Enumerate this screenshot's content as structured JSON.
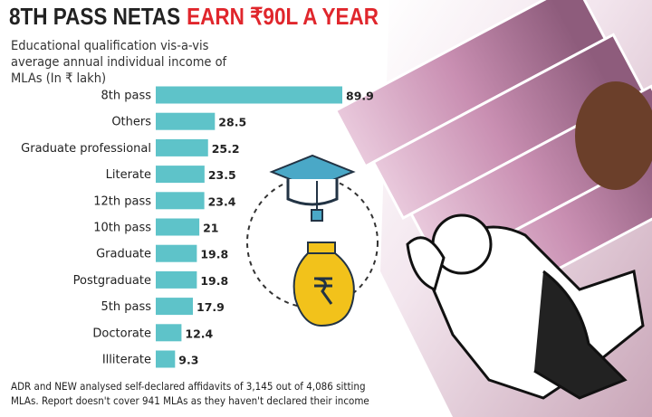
{
  "chart_data": {
    "type": "bar",
    "orientation": "horizontal",
    "title": "8TH PASS NETAS",
    "title_highlight": "EARN ₹90L A YEAR",
    "title_highlight_color": "#e0262c",
    "subtitle": "Educational qualification vis-a-vis average annual individual income of MLAs (In ₹ lakh)",
    "categories": [
      "8th pass",
      "Others",
      "Graduate professional",
      "Literate",
      "12th pass",
      "10th pass",
      "Graduate",
      "Postgraduate",
      "5th pass",
      "Doctorate",
      "Illiterate"
    ],
    "values": [
      89.9,
      28.5,
      25.2,
      23.5,
      23.4,
      21,
      19.8,
      19.8,
      17.9,
      12.4,
      9.3
    ],
    "color": "#5ec3c9",
    "note": "ADR and NEW analysed self-declared affidavits of 3,145 out of 4,086 sitting MLAs. Report doesn't cover 941 MLAs as they haven't declared their income"
  }
}
